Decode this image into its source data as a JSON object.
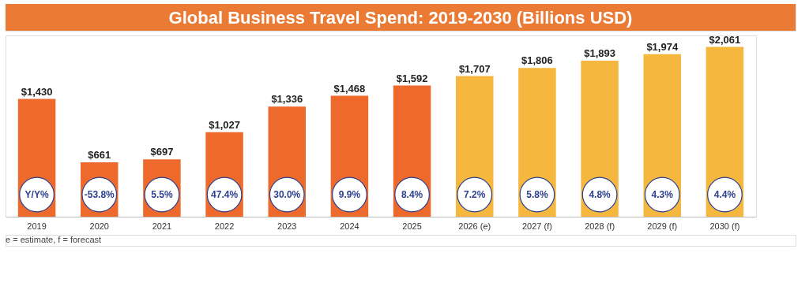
{
  "chart_data": {
    "type": "bar",
    "title": "Global Business Travel Spend: 2019-2030 (Billions USD)",
    "categories": [
      "2019",
      "2020",
      "2021",
      "2022",
      "2023",
      "2024",
      "2025",
      "2026 (e)",
      "2027 (f)",
      "2028 (f)",
      "2029 (f)",
      "2030 (f)"
    ],
    "values": [
      1430,
      661,
      697,
      1027,
      1336,
      1468,
      1592,
      1707,
      1806,
      1893,
      1974,
      2061
    ],
    "colors": [
      "#ee6a2c",
      "#ee6a2c",
      "#ee6a2c",
      "#ee6a2c",
      "#ee6a2c",
      "#ee6a2c",
      "#ee6a2c",
      "#f5b73e",
      "#f5b73e",
      "#f5b73e",
      "#f5b73e",
      "#f5b73e"
    ],
    "value_labels": [
      "$1,430",
      "$661",
      "$697",
      "$1,027",
      "$1,336",
      "$1,468",
      "$1,592",
      "$1,707",
      "$1,806",
      "$1,893",
      "$1,974",
      "$2,061"
    ],
    "annotations": [
      {
        "text": "Y/Y%",
        "x": "2019"
      },
      {
        "text": "-53.8%",
        "x": "2020"
      },
      {
        "text": "5.5%",
        "x": "2021"
      },
      {
        "text": "47.4%",
        "x": "2022"
      },
      {
        "text": "30.0%",
        "x": "2023"
      },
      {
        "text": "9.9%",
        "x": "2024"
      },
      {
        "text": "8.4%",
        "x": "2025"
      },
      {
        "text": "7.2%",
        "x": "2026 (e)"
      },
      {
        "text": "5.8%",
        "x": "2027 (f)"
      },
      {
        "text": "4.8%",
        "x": "2028 (f)"
      },
      {
        "text": "4.3%",
        "x": "2029 (f)"
      },
      {
        "text": "4.4%",
        "x": "2030 (f)"
      },
      "e = estimate, f = forecast"
    ],
    "grid": false,
    "legend": false
  }
}
